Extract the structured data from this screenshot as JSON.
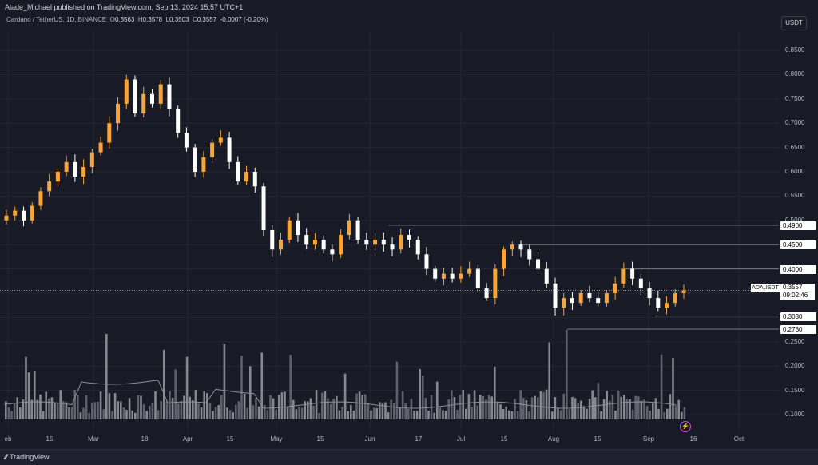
{
  "header": {
    "publisher": "Alade_Michael published on TradingView.com, Sep 13, 2024 15:57 UTC+1",
    "symbol": "Cardano / TetherUS, 1D, BINANCE",
    "o_label": "O",
    "o": "0.3563",
    "h_label": "H",
    "h": "0.3578",
    "l_label": "L",
    "l": "0.3503",
    "c_label": "C",
    "c": "0.3557",
    "change": "-0.0007 (-0.20%)",
    "quote_currency": "USDT"
  },
  "price_axis": {
    "ticks": [
      "0.8500",
      "0.8000",
      "0.7500",
      "0.7000",
      "0.6500",
      "0.6000",
      "0.5500",
      "0.5000",
      "0.4500",
      "0.4000",
      "0.3500",
      "0.3000",
      "0.2500",
      "0.2000",
      "0.1500",
      "0.1000"
    ],
    "levels": [
      "0.4900",
      "0.4500",
      "0.4000",
      "0.3030",
      "0.2760"
    ],
    "current": {
      "tag": "ADAUSDT",
      "price": "0.3557",
      "countdown": "09:02:46"
    }
  },
  "time_axis": {
    "ticks": [
      "eb",
      "15",
      "Mar",
      "18",
      "Apr",
      "15",
      "May",
      "15",
      "Jun",
      "17",
      "Jul",
      "15",
      "Aug",
      "15",
      "Sep",
      "16",
      "Oct"
    ]
  },
  "footer": {
    "brand": "TradingView"
  },
  "colors": {
    "up": "#f7a43a",
    "down": "#ffffff",
    "bg": "#181a25",
    "grid": "#242733",
    "level_line": "#787b86"
  },
  "chart_data": {
    "type": "candlestick",
    "ylim": [
      0.08,
      0.86
    ],
    "level_lines": [
      0.49,
      0.45,
      0.4,
      0.303,
      0.276
    ],
    "last_price": 0.3557,
    "close_series": [
      0.51,
      0.52,
      0.5,
      0.53,
      0.56,
      0.58,
      0.6,
      0.62,
      0.59,
      0.61,
      0.64,
      0.66,
      0.7,
      0.74,
      0.79,
      0.72,
      0.76,
      0.74,
      0.78,
      0.73,
      0.68,
      0.65,
      0.6,
      0.63,
      0.66,
      0.67,
      0.62,
      0.58,
      0.6,
      0.57,
      0.48,
      0.44,
      0.46,
      0.5,
      0.47,
      0.45,
      0.46,
      0.44,
      0.43,
      0.47,
      0.5,
      0.46,
      0.45,
      0.46,
      0.45,
      0.44,
      0.47,
      0.46,
      0.43,
      0.4,
      0.38,
      0.39,
      0.38,
      0.39,
      0.4,
      0.36,
      0.34,
      0.4,
      0.44,
      0.45,
      0.44,
      0.42,
      0.4,
      0.37,
      0.32,
      0.34,
      0.33,
      0.35,
      0.34,
      0.33,
      0.35,
      0.37,
      0.4,
      0.38,
      0.36,
      0.34,
      0.32,
      0.33,
      0.35,
      0.3557
    ],
    "volume_note": "relative volume bars"
  }
}
